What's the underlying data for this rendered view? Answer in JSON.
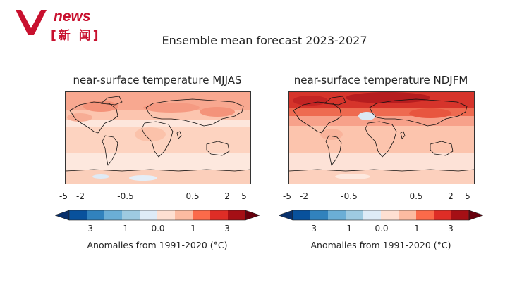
{
  "logo": {
    "brand": "news",
    "chinese": "[新 闻]",
    "color": "#c8102e"
  },
  "figure_title": "Ensemble mean forecast 2023-2027",
  "panels": [
    {
      "title": "near-surface temperature MJJAS"
    },
    {
      "title": "near-surface temperature NDJFM"
    }
  ],
  "legend": {
    "top_ticks": [
      "-5",
      "-2",
      "-0.5",
      "0.5",
      "2",
      "5"
    ],
    "bottom_ticks": [
      "-3",
      "-1",
      "0.0",
      "1",
      "3"
    ],
    "label": "Anomalies from 1991-2020 (°C)",
    "colors": [
      "#08519c",
      "#3182bd",
      "#6baed6",
      "#9ecae1",
      "#deebf7",
      "#fee0d2",
      "#fcbba1",
      "#fb6a4a",
      "#de2d26",
      "#a50f15",
      "#67000d"
    ]
  }
}
